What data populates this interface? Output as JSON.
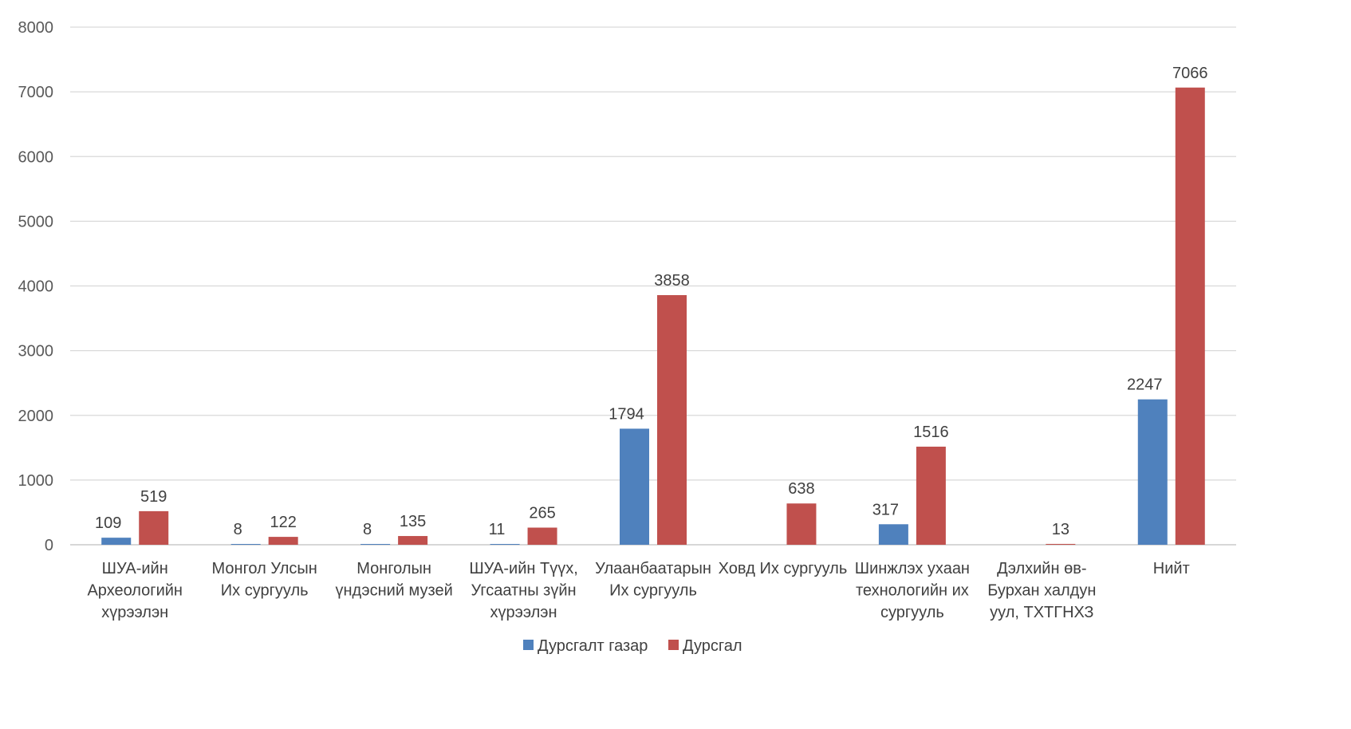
{
  "chart_data": {
    "type": "bar",
    "categories": [
      [
        "ШУА-ийн",
        "Археологийн",
        "хүрээлэн"
      ],
      [
        "Монгол Улсын",
        "Их сургууль"
      ],
      [
        "Монголын",
        "үндэсний музей"
      ],
      [
        "ШУА-ийн Түүх,",
        "Угсаатны зүйн",
        "хүрээлэн"
      ],
      [
        "Улаанбаатарын",
        "Их сургууль"
      ],
      [
        "Ховд Их сургууль"
      ],
      [
        "Шинжлэх ухаан",
        "технологийн их",
        "сургууль"
      ],
      [
        "Дэлхийн өв-",
        "Бурхан халдун",
        "уул, ТХТГНХЗ"
      ],
      [
        "Нийт"
      ]
    ],
    "series": [
      {
        "name": "Дурсгалт газар",
        "color": "#4F81BD",
        "values": [
          109,
          8,
          8,
          11,
          1794,
          null,
          317,
          null,
          2247
        ]
      },
      {
        "name": "Дурсгал",
        "color": "#C0504D",
        "values": [
          519,
          122,
          135,
          265,
          3858,
          638,
          1516,
          13,
          7066
        ]
      }
    ],
    "ylim": [
      0,
      8000
    ],
    "yticks": [
      0,
      1000,
      2000,
      3000,
      4000,
      5000,
      6000,
      7000,
      8000
    ],
    "grid": true,
    "legend_position": "bottom-center"
  }
}
